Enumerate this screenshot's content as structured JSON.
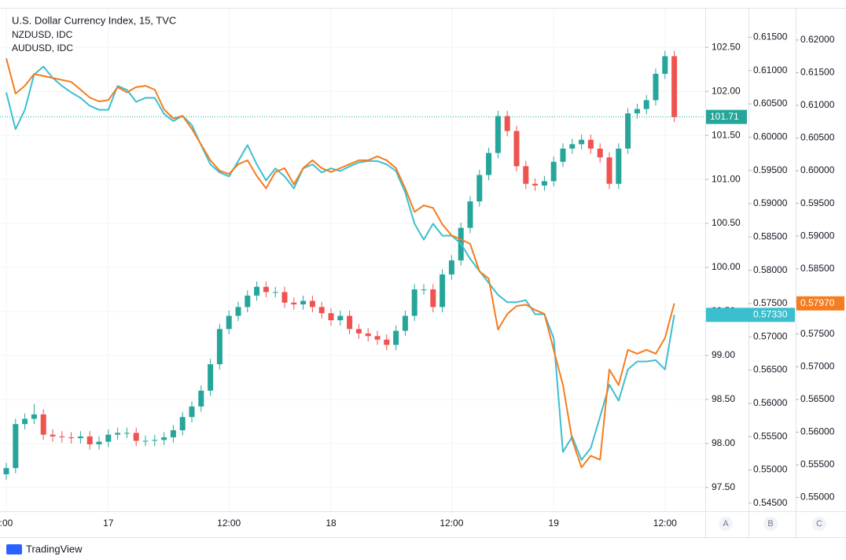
{
  "chart_data": {
    "type": "candlestick",
    "title": "U.S. Dollar Currency Index, 15, TVC",
    "categories": [
      ":00",
      null,
      null,
      null,
      null,
      null,
      null,
      null,
      null,
      null,
      null,
      "17",
      null,
      null,
      null,
      null,
      null,
      null,
      null,
      null,
      null,
      null,
      null,
      null,
      "12:00",
      null,
      null,
      null,
      null,
      null,
      null,
      null,
      null,
      null,
      null,
      "18",
      null,
      null,
      null,
      null,
      null,
      null,
      null,
      null,
      null,
      null,
      null,
      null,
      "12:00",
      null,
      null,
      null,
      null,
      null,
      null,
      null,
      null,
      null,
      null,
      "19",
      null,
      null,
      null,
      null,
      null,
      null,
      null,
      null,
      null,
      null,
      null,
      "12:00",
      null
    ],
    "open": [
      97.65,
      97.72,
      98.22,
      98.28,
      98.33,
      98.1,
      98.08,
      98.07,
      98.06,
      98.08,
      97.99,
      98.02,
      98.1,
      98.12,
      98.12,
      98.03,
      98.03,
      98.04,
      98.07,
      98.15,
      98.3,
      98.42,
      98.6,
      98.9,
      99.3,
      99.45,
      99.55,
      99.68,
      99.78,
      99.72,
      99.72,
      99.6,
      99.58,
      99.62,
      99.55,
      99.48,
      99.4,
      99.45,
      99.3,
      99.25,
      99.22,
      99.18,
      99.12,
      99.28,
      99.45,
      99.75,
      99.75,
      99.55,
      99.92,
      100.08,
      100.45,
      100.75,
      101.05,
      101.3,
      101.72,
      101.55,
      101.15,
      100.95,
      100.93,
      100.98,
      101.2,
      101.35,
      101.4,
      101.45,
      101.35,
      101.25,
      100.95,
      101.35,
      101.75,
      101.8,
      101.9,
      102.2,
      102.4
    ],
    "high": [
      97.78,
      98.28,
      98.34,
      98.45,
      98.39,
      98.16,
      98.14,
      98.13,
      98.14,
      98.14,
      98.08,
      98.16,
      98.18,
      98.18,
      98.18,
      98.09,
      98.1,
      98.13,
      98.21,
      98.36,
      98.48,
      98.66,
      98.96,
      99.36,
      99.51,
      99.61,
      99.74,
      99.84,
      99.84,
      99.78,
      99.78,
      99.66,
      99.68,
      99.68,
      99.61,
      99.54,
      99.51,
      99.51,
      99.36,
      99.31,
      99.28,
      99.24,
      99.34,
      99.51,
      99.81,
      99.81,
      99.81,
      99.98,
      100.14,
      100.51,
      100.81,
      101.11,
      101.36,
      101.78,
      101.78,
      101.61,
      101.21,
      101.01,
      101.04,
      101.26,
      101.41,
      101.46,
      101.51,
      101.51,
      101.41,
      101.31,
      101.41,
      101.81,
      101.86,
      101.96,
      102.26,
      102.46,
      102.46
    ],
    "low": [
      97.59,
      97.66,
      98.16,
      98.22,
      98.04,
      98.02,
      98.01,
      98.0,
      98.0,
      97.93,
      97.93,
      97.96,
      98.04,
      98.06,
      97.97,
      97.97,
      97.97,
      97.98,
      98.01,
      98.09,
      98.24,
      98.36,
      98.54,
      98.84,
      99.24,
      99.39,
      99.49,
      99.62,
      99.66,
      99.66,
      99.54,
      99.52,
      99.52,
      99.49,
      99.42,
      99.34,
      99.34,
      99.24,
      99.19,
      99.16,
      99.12,
      99.06,
      99.06,
      99.22,
      99.39,
      99.69,
      99.49,
      99.49,
      99.86,
      100.02,
      100.39,
      100.69,
      100.99,
      101.24,
      101.49,
      101.09,
      100.89,
      100.87,
      100.87,
      100.92,
      101.14,
      101.29,
      101.34,
      101.29,
      101.19,
      100.89,
      100.89,
      101.29,
      101.69,
      101.74,
      101.84,
      102.14,
      101.65
    ],
    "close": [
      97.72,
      98.22,
      98.28,
      98.33,
      98.1,
      98.08,
      98.07,
      98.06,
      98.08,
      97.99,
      98.02,
      98.1,
      98.12,
      98.12,
      98.03,
      98.03,
      98.04,
      98.07,
      98.15,
      98.3,
      98.42,
      98.6,
      98.9,
      99.3,
      99.45,
      99.55,
      99.68,
      99.78,
      99.72,
      99.72,
      99.6,
      99.58,
      99.62,
      99.55,
      99.48,
      99.4,
      99.45,
      99.3,
      99.25,
      99.22,
      99.18,
      99.12,
      99.28,
      99.45,
      99.75,
      99.75,
      99.55,
      99.92,
      100.08,
      100.45,
      100.75,
      101.05,
      101.3,
      101.72,
      101.55,
      101.15,
      100.95,
      100.93,
      100.98,
      101.2,
      101.35,
      101.4,
      101.45,
      101.35,
      101.25,
      100.95,
      101.35,
      101.75,
      101.8,
      101.9,
      102.2,
      102.4,
      101.71
    ],
    "up_color": "#26a69a",
    "down_color": "#ef5350",
    "last_price": {
      "value": 101.71,
      "label": "101.71"
    },
    "ylim": [
      97.23,
      102.94
    ],
    "yticks": [
      {
        "value": 97.5,
        "label": "97.50"
      },
      {
        "value": 98,
        "label": "98.00"
      },
      {
        "value": 98.5,
        "label": "98.50"
      },
      {
        "value": 99,
        "label": "99.00"
      },
      {
        "value": 99.5,
        "label": "99.50"
      },
      {
        "value": 100,
        "label": "100.00"
      },
      {
        "value": 100.5,
        "label": "100.50"
      },
      {
        "value": 101,
        "label": "101.00"
      },
      {
        "value": 101.5,
        "label": "101.50"
      },
      {
        "value": 102,
        "label": "102.00"
      },
      {
        "value": 102.5,
        "label": "102.50"
      }
    ],
    "y2lim": [
      0.5438,
      0.6193
    ],
    "y2ticks": [
      {
        "value": 0.545,
        "label": "0.54500"
      },
      {
        "value": 0.55,
        "label": "0.55000"
      },
      {
        "value": 0.555,
        "label": "0.55500"
      },
      {
        "value": 0.56,
        "label": "0.56000"
      },
      {
        "value": 0.565,
        "label": "0.56500"
      },
      {
        "value": 0.57,
        "label": "0.57000"
      },
      {
        "value": 0.575,
        "label": "0.57500"
      },
      {
        "value": 0.58,
        "label": "0.58000"
      },
      {
        "value": 0.585,
        "label": "0.58500"
      },
      {
        "value": 0.59,
        "label": "0.59000"
      },
      {
        "value": 0.595,
        "label": "0.59500"
      },
      {
        "value": 0.6,
        "label": "0.60000"
      },
      {
        "value": 0.605,
        "label": "0.60500"
      },
      {
        "value": 0.61,
        "label": "0.61000"
      },
      {
        "value": 0.615,
        "label": "0.61500"
      }
    ],
    "y3lim": [
      0.5479,
      0.6248
    ],
    "y3ticks": [
      {
        "value": 0.55,
        "label": "0.55000"
      },
      {
        "value": 0.555,
        "label": "0.55500"
      },
      {
        "value": 0.56,
        "label": "0.56000"
      },
      {
        "value": 0.565,
        "label": "0.56500"
      },
      {
        "value": 0.57,
        "label": "0.57000"
      },
      {
        "value": 0.575,
        "label": "0.57500"
      },
      {
        "value": 0.58,
        "label": "0.58000"
      },
      {
        "value": 0.585,
        "label": "0.58500"
      },
      {
        "value": 0.59,
        "label": "0.59000"
      },
      {
        "value": 0.595,
        "label": "0.59500"
      },
      {
        "value": 0.6,
        "label": "0.60000"
      },
      {
        "value": 0.605,
        "label": "0.60500"
      },
      {
        "value": 0.61,
        "label": "0.61000"
      },
      {
        "value": 0.615,
        "label": "0.61500"
      },
      {
        "value": 0.62,
        "label": "0.62000"
      }
    ],
    "series": [
      {
        "name": "NZDUSD, IDC",
        "color": "#3bbfcf",
        "axis": "y2",
        "values": [
          0.6067,
          0.6012,
          0.6041,
          0.6094,
          0.6106,
          0.6089,
          0.6077,
          0.6067,
          0.6059,
          0.6047,
          0.6041,
          0.6041,
          0.6077,
          0.6071,
          0.6053,
          0.6059,
          0.6059,
          0.6035,
          0.6024,
          0.6032,
          0.6018,
          0.5988,
          0.5959,
          0.5947,
          0.5941,
          0.5964,
          0.5988,
          0.5959,
          0.5935,
          0.5953,
          0.5941,
          0.5923,
          0.5953,
          0.5959,
          0.5947,
          0.5953,
          0.5949,
          0.5956,
          0.5962,
          0.5964,
          0.5964,
          0.5959,
          0.5949,
          0.5917,
          0.587,
          0.5846,
          0.587,
          0.5852,
          0.5852,
          0.584,
          0.5817,
          0.5799,
          0.5781,
          0.5763,
          0.5752,
          0.5752,
          0.5755,
          0.5734,
          0.5734,
          0.5698,
          0.5527,
          0.555,
          0.5515,
          0.5533,
          0.558,
          0.5628,
          0.5604,
          0.5651,
          0.5663,
          0.5663,
          0.5665,
          0.5651,
          0.5733
        ],
        "last_label": {
          "value": 0.5733,
          "label": "0.57330"
        }
      },
      {
        "name": "AUDUSD, IDC",
        "color": "#f57c1f",
        "axis": "y3",
        "values": [
          0.6172,
          0.6118,
          0.613,
          0.6148,
          0.6145,
          0.6142,
          0.6139,
          0.6136,
          0.6124,
          0.6112,
          0.6106,
          0.6108,
          0.6128,
          0.612,
          0.6128,
          0.613,
          0.6124,
          0.6094,
          0.608,
          0.6084,
          0.6064,
          0.604,
          0.6016,
          0.6,
          0.5995,
          0.601,
          0.6016,
          0.5992,
          0.5973,
          0.5998,
          0.6004,
          0.5979,
          0.6004,
          0.6016,
          0.6004,
          0.5998,
          0.6004,
          0.601,
          0.6016,
          0.6016,
          0.6022,
          0.6016,
          0.6004,
          0.5973,
          0.5937,
          0.5947,
          0.5943,
          0.5918,
          0.5901,
          0.5895,
          0.5888,
          0.5846,
          0.5835,
          0.5757,
          0.5781,
          0.5793,
          0.5795,
          0.5787,
          0.5781,
          0.5726,
          0.5672,
          0.5588,
          0.5546,
          0.5564,
          0.5558,
          0.5696,
          0.5672,
          0.5726,
          0.572,
          0.5726,
          0.572,
          0.5744,
          0.5797
        ],
        "last_label": {
          "value": 0.5797,
          "label": "0.57970"
        }
      }
    ],
    "axis_buttons": [
      "A",
      "B",
      "C"
    ],
    "brand": "TradingView"
  }
}
